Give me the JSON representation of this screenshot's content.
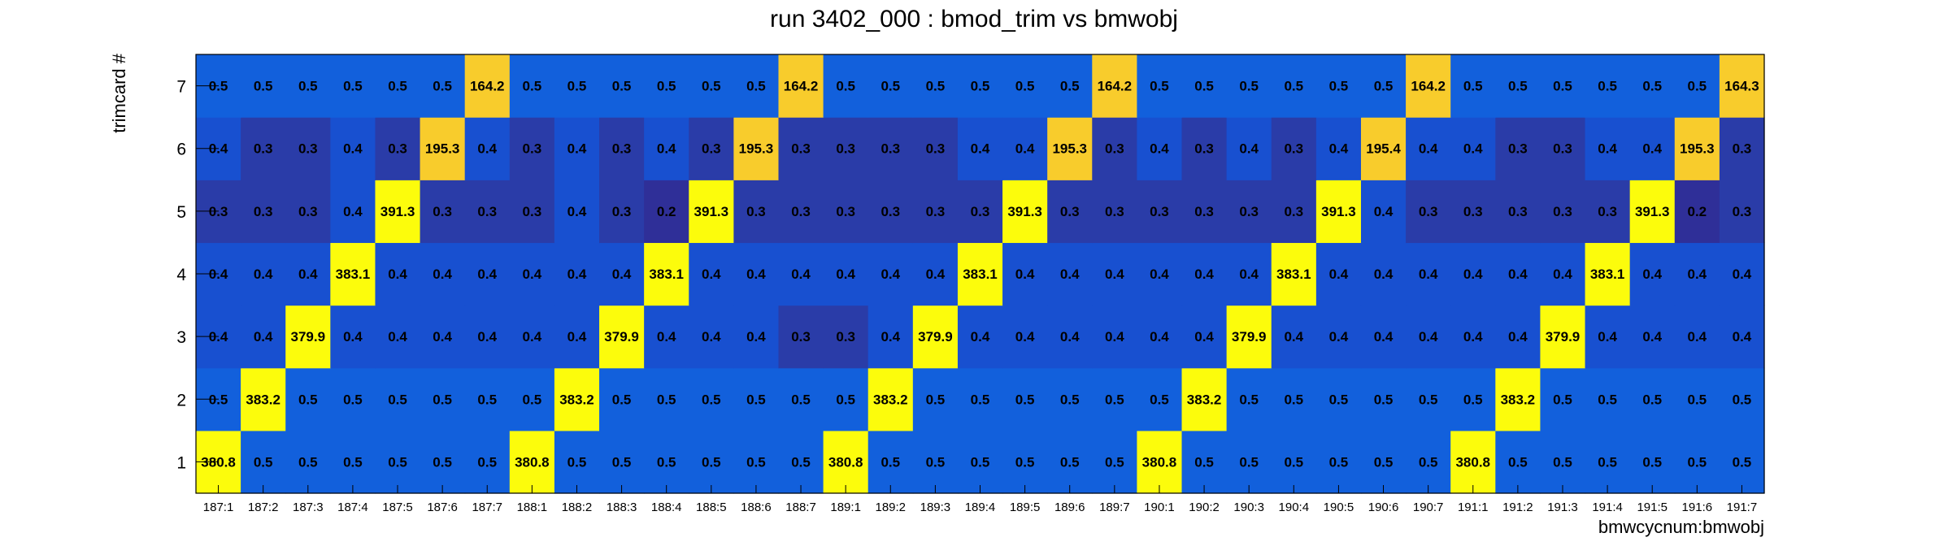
{
  "chart_data": {
    "type": "heatmap",
    "title": "run 3402_000 : bmod_trim vs bmwobj",
    "xlabel": "bmwcycnum:bmwobj",
    "ylabel": "trimcard #",
    "x_categories": [
      "187:1",
      "187:2",
      "187:3",
      "187:4",
      "187:5",
      "187:6",
      "187:7",
      "188:1",
      "188:2",
      "188:3",
      "188:4",
      "188:5",
      "188:6",
      "188:7",
      "189:1",
      "189:2",
      "189:3",
      "189:4",
      "189:5",
      "189:6",
      "189:7",
      "190:1",
      "190:2",
      "190:3",
      "190:4",
      "190:5",
      "190:6",
      "190:7",
      "191:1",
      "191:2",
      "191:3",
      "191:4",
      "191:5",
      "191:6",
      "191:7"
    ],
    "y_categories": [
      "1",
      "2",
      "3",
      "4",
      "5",
      "6",
      "7"
    ],
    "rows": [
      {
        "y": "1",
        "values": [
          "380.8",
          "0.5",
          "0.5",
          "0.5",
          "0.5",
          "0.5",
          "0.5",
          "380.8",
          "0.5",
          "0.5",
          "0.5",
          "0.5",
          "0.5",
          "0.5",
          "380.8",
          "0.5",
          "0.5",
          "0.5",
          "0.5",
          "0.5",
          "0.5",
          "380.8",
          "0.5",
          "0.5",
          "0.5",
          "0.5",
          "0.5",
          "0.5",
          "380.8",
          "0.5",
          "0.5",
          "0.5",
          "0.5",
          "0.5",
          "0.5"
        ]
      },
      {
        "y": "2",
        "values": [
          "0.5",
          "383.2",
          "0.5",
          "0.5",
          "0.5",
          "0.5",
          "0.5",
          "0.5",
          "383.2",
          "0.5",
          "0.5",
          "0.5",
          "0.5",
          "0.5",
          "0.5",
          "383.2",
          "0.5",
          "0.5",
          "0.5",
          "0.5",
          "0.5",
          "0.5",
          "383.2",
          "0.5",
          "0.5",
          "0.5",
          "0.5",
          "0.5",
          "0.5",
          "383.2",
          "0.5",
          "0.5",
          "0.5",
          "0.5",
          "0.5"
        ]
      },
      {
        "y": "3",
        "values": [
          "0.4",
          "0.4",
          "379.9",
          "0.4",
          "0.4",
          "0.4",
          "0.4",
          "0.4",
          "0.4",
          "379.9",
          "0.4",
          "0.4",
          "0.4",
          "0.3",
          "0.3",
          "0.4",
          "379.9",
          "0.4",
          "0.4",
          "0.4",
          "0.4",
          "0.4",
          "0.4",
          "379.9",
          "0.4",
          "0.4",
          "0.4",
          "0.4",
          "0.4",
          "0.4",
          "379.9",
          "0.4",
          "0.4",
          "0.4",
          "0.4"
        ]
      },
      {
        "y": "4",
        "values": [
          "0.4",
          "0.4",
          "0.4",
          "383.1",
          "0.4",
          "0.4",
          "0.4",
          "0.4",
          "0.4",
          "0.4",
          "383.1",
          "0.4",
          "0.4",
          "0.4",
          "0.4",
          "0.4",
          "0.4",
          "383.1",
          "0.4",
          "0.4",
          "0.4",
          "0.4",
          "0.4",
          "0.4",
          "383.1",
          "0.4",
          "0.4",
          "0.4",
          "0.4",
          "0.4",
          "0.4",
          "383.1",
          "0.4",
          "0.4",
          "0.4"
        ]
      },
      {
        "y": "5",
        "values": [
          "0.3",
          "0.3",
          "0.3",
          "0.4",
          "391.3",
          "0.3",
          "0.3",
          "0.3",
          "0.4",
          "0.3",
          "0.2",
          "391.3",
          "0.3",
          "0.3",
          "0.3",
          "0.3",
          "0.3",
          "0.3",
          "391.3",
          "0.3",
          "0.3",
          "0.3",
          "0.3",
          "0.3",
          "0.3",
          "391.3",
          "0.4",
          "0.3",
          "0.3",
          "0.3",
          "0.3",
          "0.3",
          "391.3",
          "0.2",
          "0.3"
        ]
      },
      {
        "y": "6",
        "values": [
          "0.4",
          "0.3",
          "0.3",
          "0.4",
          "0.3",
          "195.3",
          "0.4",
          "0.3",
          "0.4",
          "0.3",
          "0.4",
          "0.3",
          "195.3",
          "0.3",
          "0.3",
          "0.3",
          "0.3",
          "0.4",
          "0.4",
          "195.3",
          "0.3",
          "0.4",
          "0.3",
          "0.4",
          "0.3",
          "0.4",
          "195.4",
          "0.4",
          "0.4",
          "0.3",
          "0.3",
          "0.4",
          "0.4",
          "195.3",
          "0.3"
        ]
      },
      {
        "y": "7",
        "values": [
          "0.5",
          "0.5",
          "0.5",
          "0.5",
          "0.5",
          "0.5",
          "164.2",
          "0.5",
          "0.5",
          "0.5",
          "0.5",
          "0.5",
          "0.5",
          "164.2",
          "0.5",
          "0.5",
          "0.5",
          "0.5",
          "0.5",
          "0.5",
          "164.2",
          "0.5",
          "0.5",
          "0.5",
          "0.5",
          "0.5",
          "0.5",
          "164.2",
          "0.5",
          "0.5",
          "0.5",
          "0.5",
          "0.5",
          "0.5",
          "164.3"
        ]
      }
    ],
    "palette": {
      "high_yellow": "#FCFC0C",
      "mid_gold": "#F8CC2C",
      "base_blue": "#1260DC",
      "mid_blue": "#1850D0",
      "low_blue": "#2A3CA8",
      "lowest_blue": "#2F2F98"
    },
    "grid": false,
    "legend": "none"
  }
}
